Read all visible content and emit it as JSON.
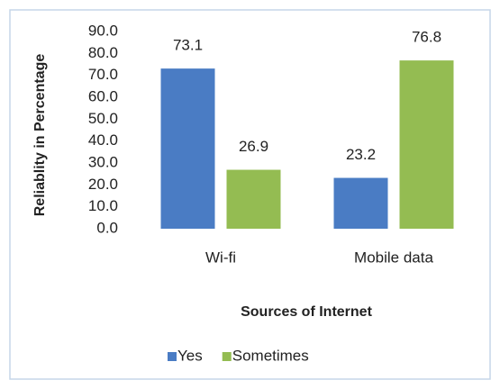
{
  "chart_data": {
    "type": "bar",
    "categories": [
      "Wi-fi",
      "Mobile data"
    ],
    "series": [
      {
        "name": "Yes",
        "color": "#4a7cc4",
        "values": [
          73.1,
          23.2
        ]
      },
      {
        "name": "Sometimes",
        "color": "#94bc52",
        "values": [
          26.9,
          76.8
        ]
      }
    ],
    "ylim": [
      0,
      90
    ],
    "yticks": [
      {
        "value": 0,
        "label": "0.0"
      },
      {
        "value": 10,
        "label": "10.0"
      },
      {
        "value": 20,
        "label": "20.0"
      },
      {
        "value": 30,
        "label": "30.0"
      },
      {
        "value": 40,
        "label": "40.0"
      },
      {
        "value": 50,
        "label": "50.0"
      },
      {
        "value": 60,
        "label": "60.0"
      },
      {
        "value": 70,
        "label": "70.0"
      },
      {
        "value": 80,
        "label": "80.0"
      },
      {
        "value": 90,
        "label": "90.0"
      }
    ],
    "xlabel": "Sources of Internet",
    "ylabel": "Reliablity in Percentage",
    "grid": false,
    "legend": "bottom"
  }
}
